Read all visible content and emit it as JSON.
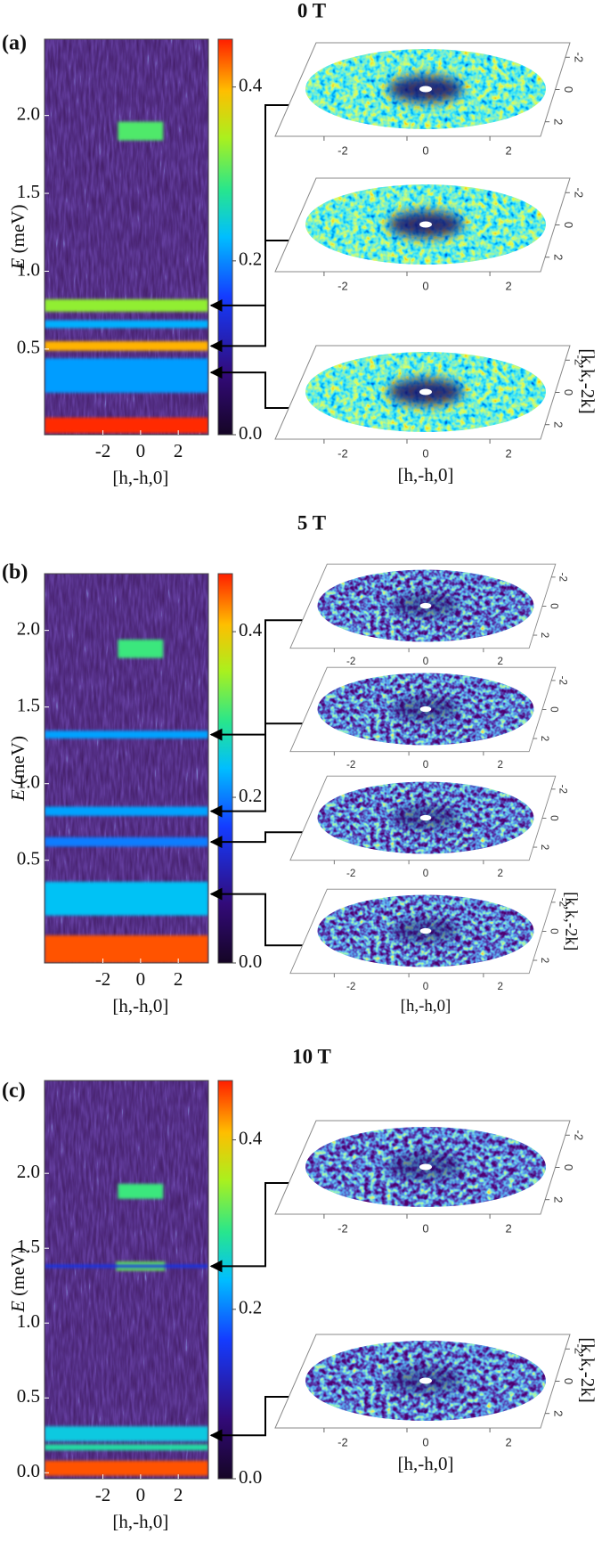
{
  "panels": [
    {
      "label": "(a)",
      "title": "0 T",
      "ylabel_var": "E",
      "ylabel_unit": "(meV)",
      "xlabel": "[h,-h,0]",
      "ylim": [
        -0.05,
        2.49
      ],
      "yticks": [
        0.5,
        {
          "value": 1,
          "label": "1.0"
        },
        1.5,
        {
          "value": 2,
          "label": "2.0"
        }
      ],
      "xlim": [
        -5.1,
        3.6
      ],
      "xticks": [
        -2,
        0,
        2
      ],
      "clim": [
        0,
        0.455
      ],
      "cticks": [
        {
          "value": 0,
          "label": "0.0"
        },
        0.2,
        0.4
      ],
      "features": [
        {
          "E": 1.9,
          "dE": 0.12,
          "I": 0.3,
          "h": [
            -1.2,
            1.2
          ]
        },
        {
          "E": 0.78,
          "dE": 0.08,
          "I": 0.33,
          "h": [
            -5.1,
            3.6
          ]
        },
        {
          "E": 0.66,
          "dE": 0.05,
          "I": 0.22,
          "h": [
            -5.1,
            3.6
          ]
        },
        {
          "E": 0.52,
          "dE": 0.06,
          "I": 0.4,
          "h": [
            -5.1,
            3.6
          ]
        },
        {
          "E": 0.33,
          "dE": 0.22,
          "I": 0.21,
          "h": [
            -5.1,
            3.6
          ]
        },
        {
          "E": 0.01,
          "dE": 0.1,
          "I": 0.45,
          "h": [
            -5.1,
            3.6
          ]
        }
      ],
      "slice_lim": [
        -2.9,
        2.9
      ],
      "slices": [
        {
          "E": 0.78,
          "xticks": [
            -2,
            0,
            2
          ],
          "yticks": [
            -2,
            0,
            2
          ]
        },
        {
          "E": 0.52,
          "xticks": [
            -2,
            0,
            2
          ],
          "yticks": [
            -2,
            0,
            2
          ]
        },
        {
          "E": 0.35,
          "xticks": [
            -2,
            0,
            2
          ],
          "yticks": [
            -2,
            0,
            2
          ],
          "xlabel": "[h,-h,0]",
          "ylabel": "[k,k,-2k]"
        }
      ]
    },
    {
      "label": "(b)",
      "title": "5 T",
      "ylabel_var": "E",
      "ylabel_unit": "(meV)",
      "xlabel": "[h,-h,0]",
      "ylim": [
        -0.17,
        2.37
      ],
      "yticks": [
        0.5,
        {
          "value": 1,
          "label": "1.0"
        },
        1.5,
        {
          "value": 2,
          "label": "2.0"
        }
      ],
      "xlim": [
        -5.1,
        3.6
      ],
      "xticks": [
        -2,
        0,
        2
      ],
      "clim": [
        0,
        0.47
      ],
      "cticks": [
        {
          "value": 0,
          "label": "0.0"
        },
        0.2,
        0.4
      ],
      "features": [
        {
          "E": 1.88,
          "dE": 0.12,
          "I": 0.3,
          "h": [
            -1.2,
            1.2
          ]
        },
        {
          "E": 1.32,
          "dE": 0.05,
          "I": 0.22,
          "h": [
            -5.1,
            3.6
          ]
        },
        {
          "E": 0.82,
          "dE": 0.06,
          "I": 0.22,
          "h": [
            -5.1,
            3.6
          ]
        },
        {
          "E": 0.62,
          "dE": 0.06,
          "I": 0.2,
          "h": [
            -5.1,
            3.6
          ]
        },
        {
          "E": 0.25,
          "dE": 0.22,
          "I": 0.24,
          "h": [
            -5.1,
            3.6
          ]
        },
        {
          "E": -0.08,
          "dE": 0.18,
          "I": 0.45,
          "h": [
            -5.1,
            3.6
          ]
        }
      ],
      "slice_lim": [
        -2.9,
        2.9
      ],
      "slices": [
        {
          "E": 1.32,
          "xticks": [
            -2,
            0,
            2
          ],
          "yticks": [
            -2,
            0,
            2
          ]
        },
        {
          "E": 0.82,
          "xticks": [
            -2,
            0,
            2
          ],
          "yticks": [
            -2,
            0,
            2
          ]
        },
        {
          "E": 0.62,
          "xticks": [
            -2,
            0,
            2
          ],
          "yticks": [
            -2,
            0,
            2
          ]
        },
        {
          "E": 0.28,
          "xticks": [
            -2,
            0,
            2
          ],
          "yticks": [
            -2,
            0,
            2
          ],
          "xlabel": "[h,-h,0]",
          "ylabel": "[k,k,-2k]"
        }
      ]
    },
    {
      "label": "(c)",
      "title": "10 T",
      "ylabel_var": "E",
      "ylabel_unit": "(meV)",
      "xlabel": "[h,-h,0]",
      "ylim": [
        -0.04,
        2.62
      ],
      "yticks": [
        {
          "value": 0,
          "label": "0.0"
        },
        0.5,
        {
          "value": 1,
          "label": "1.0"
        },
        1.5,
        {
          "value": 2,
          "label": "2.0"
        }
      ],
      "xlim": [
        -5.1,
        3.6
      ],
      "xticks": [
        -2,
        0,
        2
      ],
      "clim": [
        0,
        0.47
      ],
      "cticks": [
        {
          "value": 0,
          "label": "0.0"
        },
        0.2,
        0.4
      ],
      "features": [
        {
          "E": 1.88,
          "dE": 0.1,
          "I": 0.3,
          "h": [
            -1.2,
            1.2
          ]
        },
        {
          "E": 1.38,
          "dE": 0.06,
          "I": 0.32,
          "h": [
            -1.3,
            1.3
          ]
        },
        {
          "E": 1.38,
          "dE": 0.02,
          "I": 0.15,
          "h": [
            -5.1,
            3.6
          ]
        },
        {
          "E": 0.26,
          "dE": 0.1,
          "I": 0.25,
          "h": [
            -5.1,
            3.6
          ]
        },
        {
          "E": 0.17,
          "dE": 0.04,
          "I": 0.28,
          "h": [
            -5.1,
            3.6
          ]
        },
        {
          "E": 0.03,
          "dE": 0.1,
          "I": 0.45,
          "h": [
            -5.1,
            3.6
          ]
        }
      ],
      "slice_lim": [
        -2.9,
        2.9
      ],
      "slices": [
        {
          "E": 1.38,
          "xticks": [
            -2,
            0,
            2
          ],
          "yticks": [
            -2,
            0,
            2
          ]
        },
        {
          "E": 0.25,
          "xticks": [
            -2,
            0,
            2
          ],
          "yticks": [
            -2,
            0,
            2
          ],
          "xlabel": "[h,-h,0]",
          "ylabel": "[k,k,-2k]"
        }
      ]
    }
  ]
}
